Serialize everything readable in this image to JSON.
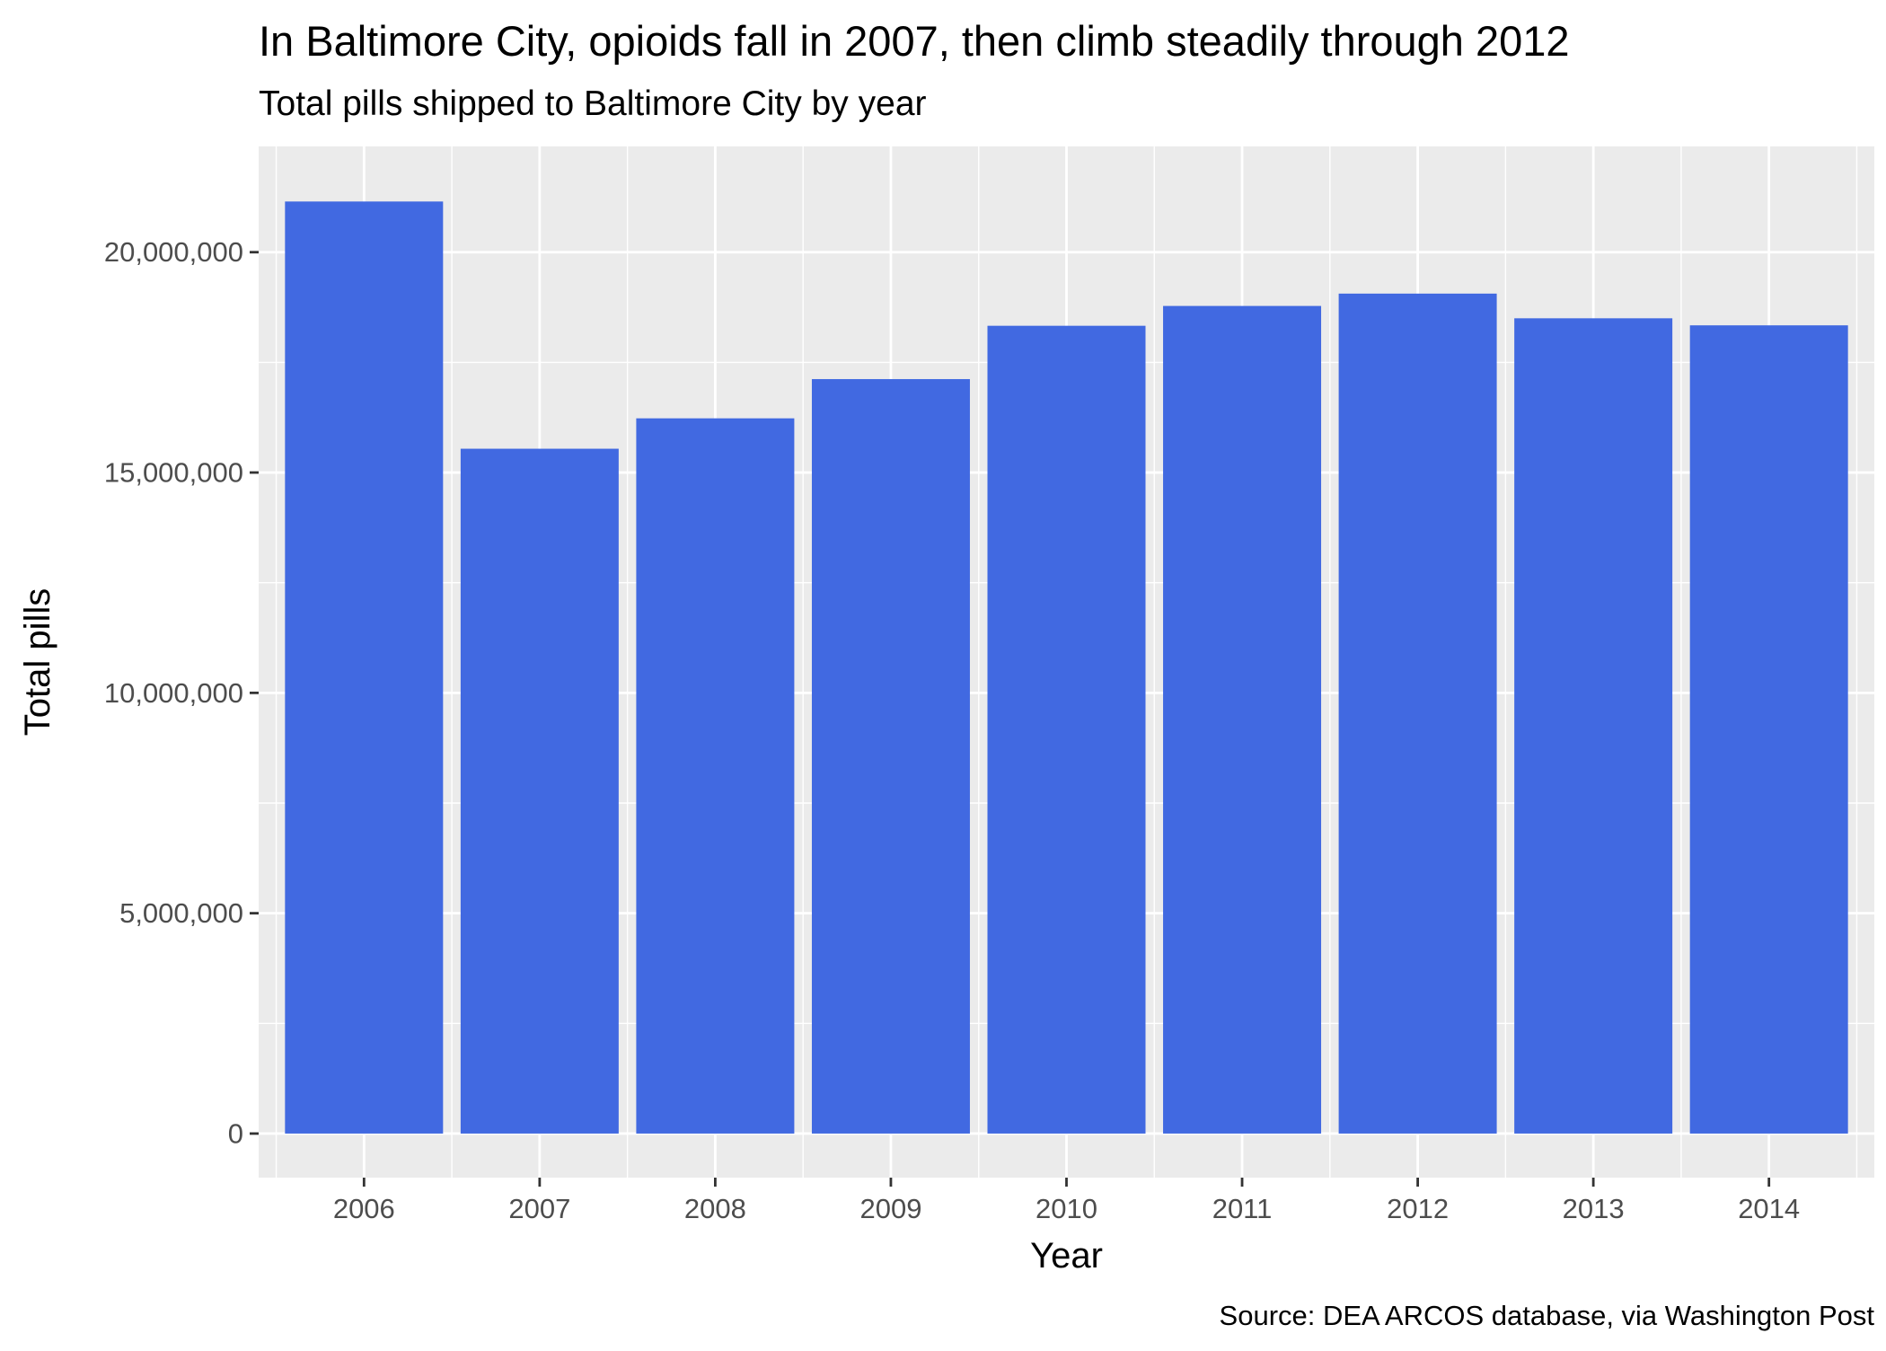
{
  "chart_data": {
    "type": "bar",
    "title": "In Baltimore City, opioids fall in 2007, then climb steadily through 2012",
    "subtitle": "Total pills shipped to Baltimore City by year",
    "xlabel": "Year",
    "ylabel": "Total pills",
    "caption": "Source: DEA ARCOS database, via Washington Post",
    "categories": [
      "2006",
      "2007",
      "2008",
      "2009",
      "2010",
      "2011",
      "2012",
      "2013",
      "2014"
    ],
    "values": [
      21150000,
      15540000,
      16230000,
      17120000,
      18330000,
      18780000,
      19060000,
      18500000,
      18340000
    ],
    "ylim": [
      -1000000,
      22400000
    ],
    "yticks": [
      0,
      5000000,
      10000000,
      15000000,
      20000000
    ],
    "ytick_labels": [
      "0",
      "5,000,000",
      "10,000,000",
      "15,000,000",
      "20,000,000"
    ],
    "grid": true,
    "bar_color": "#4169E1",
    "panel_color": "#EBEBEB",
    "grid_color": "#FFFFFF",
    "text_color": "#000000",
    "tick_color": "#4D4D4D"
  }
}
